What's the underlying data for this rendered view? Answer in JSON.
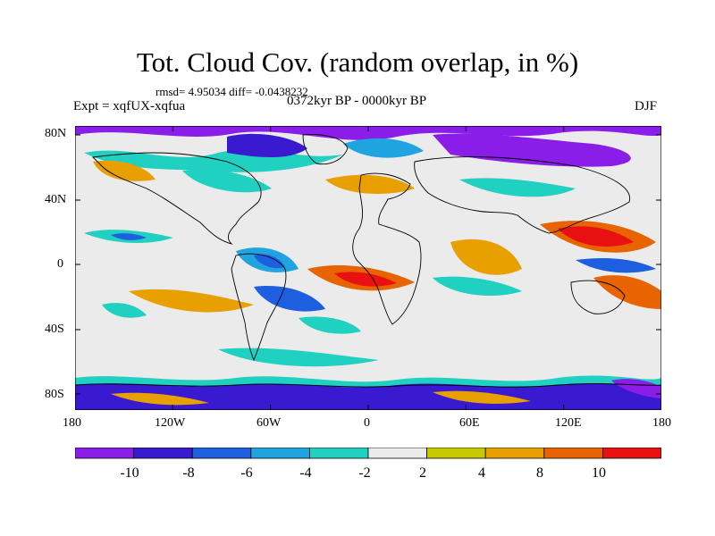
{
  "title": "Tot. Cloud Cov. (random overlap, in %)",
  "stats": "rmsd= 4.95034 diff= -0.0438232",
  "experiment": "Expt = xqfUX-xqfua",
  "period": "0372kyr BP - 0000kyr BP",
  "season": "DJF",
  "lat_ticks": [
    "80N",
    "40N",
    "0",
    "40S",
    "80S"
  ],
  "lon_ticks": [
    "180",
    "120W",
    "60W",
    "0",
    "60E",
    "120E",
    "180"
  ],
  "legend": {
    "labels": [
      "-10",
      "-8",
      "-6",
      "-4",
      "-2",
      "2",
      "4",
      "8",
      "10"
    ],
    "colors": [
      "#8a1de8",
      "#3a1ad0",
      "#1e5fe0",
      "#1fa4e0",
      "#20d0c0",
      "#ebebeb",
      "#c8c800",
      "#e8a000",
      "#e86400",
      "#e81010"
    ]
  }
}
